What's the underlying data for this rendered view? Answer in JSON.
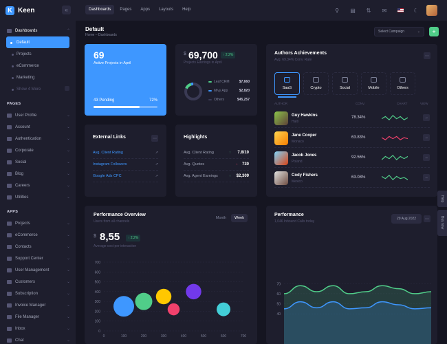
{
  "brand": {
    "name": "Keen"
  },
  "sidebar": {
    "dashboards": {
      "label": "Dashboards",
      "items": [
        {
          "label": "Default"
        },
        {
          "label": "Projects"
        },
        {
          "label": "eCommerce"
        },
        {
          "label": "Marketing"
        }
      ],
      "more": "Show 4 More"
    },
    "pages_title": "PAGES",
    "pages": [
      {
        "label": "User Profile"
      },
      {
        "label": "Account"
      },
      {
        "label": "Authentication"
      },
      {
        "label": "Corporate"
      },
      {
        "label": "Social"
      },
      {
        "label": "Blog"
      },
      {
        "label": "Careers"
      },
      {
        "label": "Utilities"
      }
    ],
    "apps_title": "APPS",
    "apps": [
      {
        "label": "Projects"
      },
      {
        "label": "eCommerce"
      },
      {
        "label": "Contacts"
      },
      {
        "label": "Support Center"
      },
      {
        "label": "User Management"
      },
      {
        "label": "Customers"
      },
      {
        "label": "Subscription"
      },
      {
        "label": "Invoice Manager"
      },
      {
        "label": "File Manager"
      },
      {
        "label": "Inbox"
      },
      {
        "label": "Chat"
      }
    ]
  },
  "topnav": {
    "items": [
      "Dashboards",
      "Pages",
      "Apps",
      "Layouts",
      "Help"
    ],
    "active": "Dashboards"
  },
  "toolbar": {
    "title": "Default",
    "breadcrumb": "Home – Dashboards",
    "campaign": "Select Campaign",
    "plus": "+"
  },
  "projects": {
    "count": "69",
    "label": "Active Projects in April",
    "pending": "43 Pending",
    "percent": "72%",
    "progress": 72
  },
  "earnings": {
    "currency": "$",
    "value": "69,700",
    "badge": "2.2%",
    "label": "Projects Earnings in April",
    "legend": [
      {
        "name": "Leaf CRM",
        "value": "$7,660",
        "color": "#50cd89",
        "share": 7660
      },
      {
        "name": "Mivy App",
        "value": "$2,820",
        "color": "#3e97ff",
        "share": 2820
      },
      {
        "name": "Others",
        "value": "$45,257",
        "color": "#3a3a54",
        "share": 45257
      }
    ]
  },
  "authors": {
    "title": "Authors Achievements",
    "subtitle": "Avg. 69.34% Conv. Rate",
    "tabs": [
      "SaaS",
      "Crypto",
      "Social",
      "Mobile",
      "Others"
    ],
    "columns": {
      "author": "AUTHOR",
      "conv": "CONV.",
      "chart": "CHART",
      "view": "VIEW"
    },
    "rows": [
      {
        "name": "Guy Hawkins",
        "country": "Haiti",
        "conv": "78.34%",
        "color": "#50cd89",
        "trend": [
          4,
          6,
          3,
          7,
          4,
          6,
          3,
          5
        ]
      },
      {
        "name": "Jane Cooper",
        "country": "Monaco",
        "conv": "63.83%",
        "color": "#f1416c",
        "trend": [
          5,
          3,
          6,
          4,
          6,
          3,
          5,
          4
        ]
      },
      {
        "name": "Jacob Jones",
        "country": "Poland",
        "conv": "92.56%",
        "color": "#50cd89",
        "trend": [
          3,
          6,
          4,
          7,
          3,
          6,
          4,
          6
        ]
      },
      {
        "name": "Cody Fishers",
        "country": "Mexico",
        "conv": "63.08%",
        "color": "#50cd89",
        "trend": [
          6,
          4,
          7,
          3,
          6,
          4,
          5,
          3
        ]
      }
    ]
  },
  "external": {
    "title": "External Links",
    "links": [
      "Avg. Client Rating",
      "Instagram Followers",
      "Google Ads CPC"
    ]
  },
  "highlights": {
    "title": "Highlights",
    "rows": [
      {
        "label": "Avg. Client Rating",
        "value": "7.8/10",
        "dir": "up"
      },
      {
        "label": "Avg. Quotes",
        "value": "730",
        "dir": "down"
      },
      {
        "label": "Avg. Agent Earnings",
        "value": "$2,309",
        "dir": "up"
      }
    ]
  },
  "performance": {
    "title": "Performance Overview",
    "subtitle": "Users from all channels",
    "tabs": [
      "Month",
      "Week"
    ],
    "active": "Week",
    "currency": "$",
    "value": "8,55",
    "badge": "2.2%",
    "caption": "Average cost per interaction"
  },
  "chart_data": [
    {
      "type": "scatter",
      "xlim": [
        0,
        700
      ],
      "ylim": [
        0,
        700
      ],
      "xticks": [
        0,
        100,
        200,
        300,
        400,
        500,
        600,
        700
      ],
      "yticks": [
        0,
        100,
        200,
        300,
        400,
        500,
        600,
        700
      ],
      "points": [
        {
          "x": 100,
          "y": 250,
          "r": 60,
          "color": "#3e97ff"
        },
        {
          "x": 200,
          "y": 300,
          "r": 50,
          "color": "#50cd89"
        },
        {
          "x": 300,
          "y": 350,
          "r": 45,
          "color": "#ffc700"
        },
        {
          "x": 350,
          "y": 220,
          "r": 35,
          "color": "#f1416c"
        },
        {
          "x": 450,
          "y": 400,
          "r": 45,
          "color": "#7239ea"
        },
        {
          "x": 600,
          "y": 220,
          "r": 40,
          "color": "#43ced7"
        }
      ]
    },
    {
      "type": "area",
      "title": "Performance",
      "subtitle": "1,046 Inbound Calls today",
      "date": "29 Aug 2022",
      "yticks": [
        40,
        50,
        60,
        70
      ],
      "ylim": [
        10,
        75
      ],
      "series": [
        {
          "color": "#50cd89",
          "values": [
            60,
            68,
            62,
            68,
            60,
            62,
            68,
            65,
            60,
            62
          ]
        },
        {
          "color": "#3e97ff",
          "values": [
            45,
            52,
            46,
            52,
            45,
            46,
            52,
            49,
            45,
            46
          ]
        }
      ]
    }
  ],
  "sidetabs": [
    "Help",
    "Buy now"
  ]
}
